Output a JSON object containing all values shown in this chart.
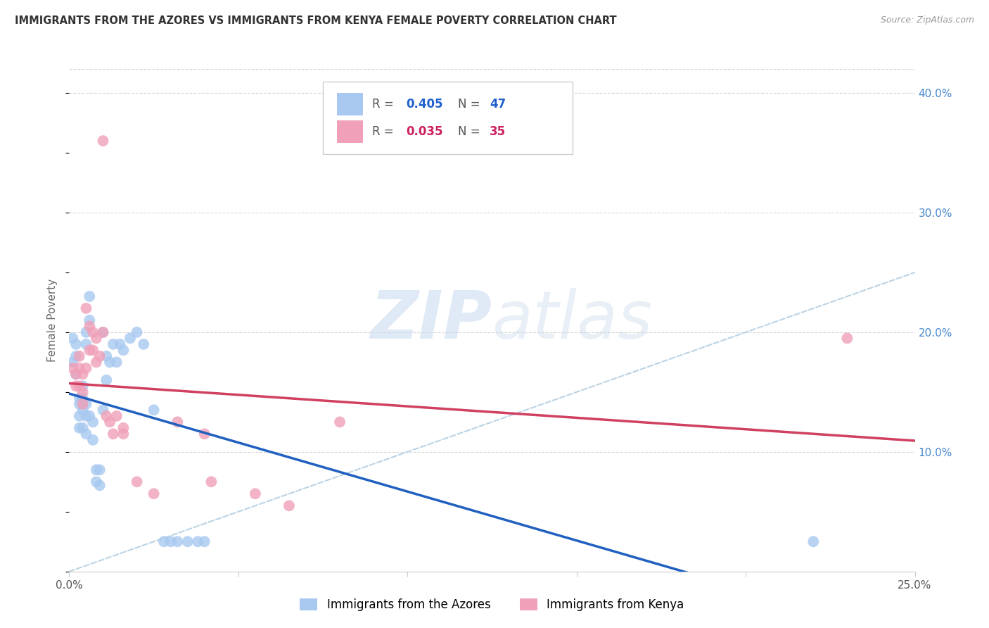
{
  "title": "IMMIGRANTS FROM THE AZORES VS IMMIGRANTS FROM KENYA FEMALE POVERTY CORRELATION CHART",
  "source": "Source: ZipAtlas.com",
  "ylabel": "Female Poverty",
  "xlim": [
    0.0,
    0.25
  ],
  "ylim": [
    0.0,
    0.42
  ],
  "watermark_zip": "ZIP",
  "watermark_atlas": "atlas",
  "legend_label1": "Immigrants from the Azores",
  "legend_label2": "Immigrants from Kenya",
  "color_azores": "#a8c8f0",
  "color_kenya": "#f0a0b8",
  "color_line_azores": "#2060c0",
  "color_line_kenya": "#d04060",
  "color_dashed": "#b0cce0",
  "azores_x": [
    0.001,
    0.001,
    0.002,
    0.002,
    0.002,
    0.003,
    0.003,
    0.003,
    0.003,
    0.004,
    0.004,
    0.004,
    0.004,
    0.005,
    0.005,
    0.005,
    0.005,
    0.005,
    0.006,
    0.006,
    0.006,
    0.007,
    0.007,
    0.008,
    0.008,
    0.009,
    0.009,
    0.01,
    0.01,
    0.011,
    0.011,
    0.012,
    0.013,
    0.014,
    0.015,
    0.016,
    0.018,
    0.02,
    0.022,
    0.025,
    0.028,
    0.03,
    0.032,
    0.035,
    0.038,
    0.04,
    0.22
  ],
  "azores_y": [
    0.195,
    0.175,
    0.19,
    0.18,
    0.165,
    0.145,
    0.14,
    0.13,
    0.12,
    0.155,
    0.145,
    0.135,
    0.12,
    0.2,
    0.19,
    0.14,
    0.13,
    0.115,
    0.23,
    0.21,
    0.13,
    0.125,
    0.11,
    0.085,
    0.075,
    0.085,
    0.072,
    0.2,
    0.135,
    0.18,
    0.16,
    0.175,
    0.19,
    0.175,
    0.19,
    0.185,
    0.195,
    0.2,
    0.19,
    0.135,
    0.025,
    0.025,
    0.025,
    0.025,
    0.025,
    0.025,
    0.025
  ],
  "kenya_x": [
    0.001,
    0.002,
    0.002,
    0.003,
    0.003,
    0.003,
    0.004,
    0.004,
    0.004,
    0.005,
    0.005,
    0.006,
    0.006,
    0.007,
    0.007,
    0.008,
    0.008,
    0.009,
    0.01,
    0.01,
    0.011,
    0.012,
    0.013,
    0.014,
    0.016,
    0.016,
    0.02,
    0.025,
    0.032,
    0.04,
    0.042,
    0.055,
    0.065,
    0.08,
    0.23
  ],
  "kenya_y": [
    0.17,
    0.165,
    0.155,
    0.18,
    0.17,
    0.155,
    0.165,
    0.15,
    0.14,
    0.22,
    0.17,
    0.205,
    0.185,
    0.2,
    0.185,
    0.195,
    0.175,
    0.18,
    0.36,
    0.2,
    0.13,
    0.125,
    0.115,
    0.13,
    0.12,
    0.115,
    0.075,
    0.065,
    0.125,
    0.115,
    0.075,
    0.065,
    0.055,
    0.125,
    0.195
  ]
}
